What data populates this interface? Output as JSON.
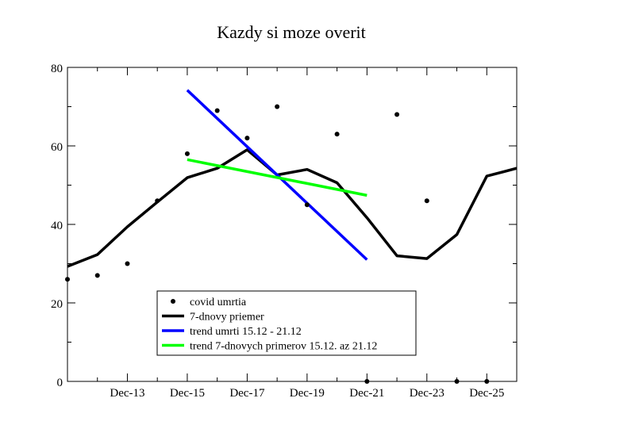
{
  "chart_data": {
    "type": "line",
    "title": "Kazdy si moze overit",
    "xlabel": "",
    "ylabel": "",
    "xlim": [
      "2020-12-11",
      "2020-12-26"
    ],
    "ylim": [
      0,
      80
    ],
    "grid": false,
    "legend_position": "bottom-left",
    "y_ticks": [
      "0",
      "20",
      "40",
      "60",
      "80"
    ],
    "x_ticks": [
      {
        "x": "2020-12-13",
        "label": "Dec-13"
      },
      {
        "x": "2020-12-15",
        "label": "Dec-15"
      },
      {
        "x": "2020-12-17",
        "label": "Dec-17"
      },
      {
        "x": "2020-12-19",
        "label": "Dec-19"
      },
      {
        "x": "2020-12-21",
        "label": "Dec-21"
      },
      {
        "x": "2020-12-23",
        "label": "Dec-23"
      },
      {
        "x": "2020-12-25",
        "label": "Dec-25"
      }
    ],
    "series": [
      {
        "name": "covid umrtia",
        "kind": "scatter",
        "color": "#000000",
        "points": [
          {
            "x": "2020-12-11",
            "y": 26
          },
          {
            "x": "2020-12-12",
            "y": 27
          },
          {
            "x": "2020-12-13",
            "y": 30
          },
          {
            "x": "2020-12-14",
            "y": 46
          },
          {
            "x": "2020-12-15",
            "y": 58
          },
          {
            "x": "2020-12-16",
            "y": 69
          },
          {
            "x": "2020-12-17",
            "y": 62
          },
          {
            "x": "2020-12-18",
            "y": 70
          },
          {
            "x": "2020-12-19",
            "y": 45
          },
          {
            "x": "2020-12-20",
            "y": 63
          },
          {
            "x": "2020-12-21",
            "y": 0
          },
          {
            "x": "2020-12-22",
            "y": 68
          },
          {
            "x": "2020-12-23",
            "y": 46
          },
          {
            "x": "2020-12-24",
            "y": 0
          },
          {
            "x": "2020-12-25",
            "y": 0
          }
        ]
      },
      {
        "name": "7-dnovy priemer",
        "kind": "line",
        "color": "#000000",
        "points": [
          {
            "x": "2020-12-11",
            "y": 29.3
          },
          {
            "x": "2020-12-12",
            "y": 32.3
          },
          {
            "x": "2020-12-13",
            "y": 39.4
          },
          {
            "x": "2020-12-14",
            "y": 45.7
          },
          {
            "x": "2020-12-15",
            "y": 51.9
          },
          {
            "x": "2020-12-16",
            "y": 54.3
          },
          {
            "x": "2020-12-17",
            "y": 59.0
          },
          {
            "x": "2020-12-18",
            "y": 52.6
          },
          {
            "x": "2020-12-19",
            "y": 54.0
          },
          {
            "x": "2020-12-20",
            "y": 50.6
          },
          {
            "x": "2020-12-21",
            "y": 41.7
          },
          {
            "x": "2020-12-22",
            "y": 32.0
          },
          {
            "x": "2020-12-23",
            "y": 31.3
          },
          {
            "x": "2020-12-24",
            "y": 37.4
          },
          {
            "x": "2020-12-25",
            "y": 52.3
          },
          {
            "x": "2020-12-26",
            "y": 54.3
          }
        ]
      },
      {
        "name": "trend umrti 15.12 - 21.12",
        "kind": "line",
        "color": "#0000ff",
        "points": [
          {
            "x": "2020-12-15",
            "y": 74.2
          },
          {
            "x": "2020-12-21",
            "y": 31.0
          }
        ]
      },
      {
        "name": "trend 7-dnovych primerov 15.12. az 21.12",
        "kind": "line",
        "color": "#00ff00",
        "points": [
          {
            "x": "2020-12-15",
            "y": 56.5
          },
          {
            "x": "2020-12-21",
            "y": 47.4
          }
        ]
      }
    ]
  }
}
